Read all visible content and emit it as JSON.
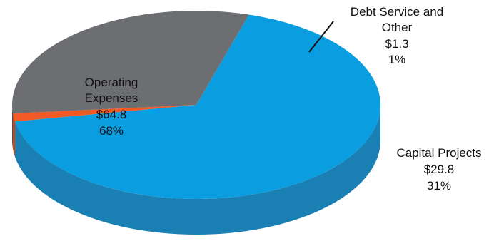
{
  "chart_data": {
    "type": "pie",
    "title": "",
    "three_d": true,
    "legend": "none",
    "slices": [
      {
        "name": "Operating Expenses",
        "name_lines": [
          "Operating",
          "Expenses"
        ],
        "value": 64.8,
        "value_label": "$64.8",
        "percent_label": "68%",
        "color": "#0a9ddf",
        "side_color": "#1a80b4"
      },
      {
        "name": "Debt Service and Other",
        "name_lines": [
          "Debt Service and",
          "Other"
        ],
        "value": 1.3,
        "value_label": "$1.3",
        "percent_label": "1%",
        "color": "#f15a24",
        "side_color": "#c4471b"
      },
      {
        "name": "Capital Projects",
        "name_lines": [
          "Capital Projects"
        ],
        "value": 29.8,
        "value_label": "$29.8",
        "percent_label": "31%",
        "color": "#6d6e71",
        "side_color": "#4b4c4f"
      }
    ]
  }
}
